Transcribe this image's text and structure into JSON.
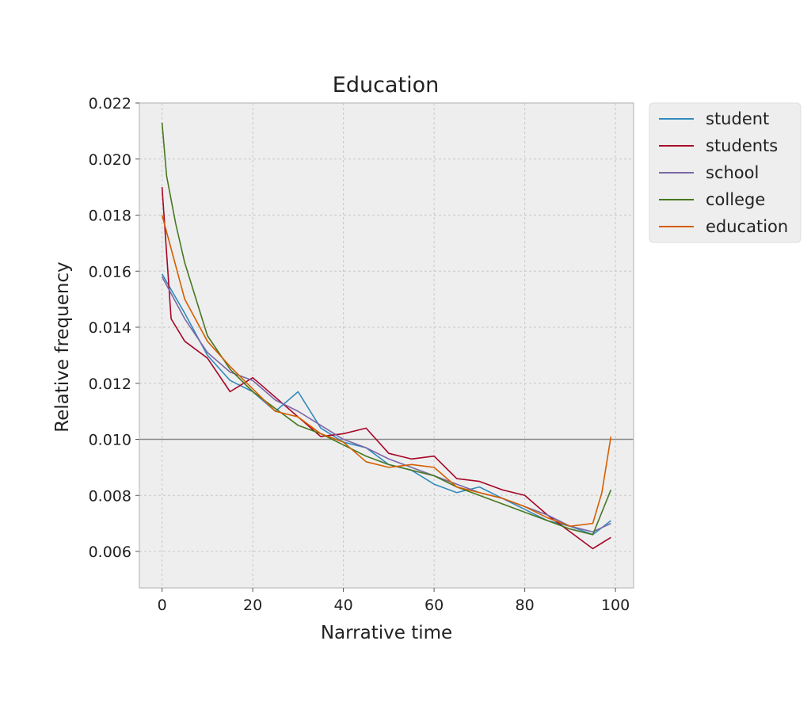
{
  "chart_data": {
    "type": "line",
    "title": "Education",
    "xlabel": "Narrative time",
    "ylabel": "Relative frequency",
    "xlim": [
      -5,
      104
    ],
    "ylim": [
      0.0047,
      0.022
    ],
    "x_ticks": [
      0,
      20,
      40,
      60,
      80,
      100
    ],
    "x_tick_labels": [
      "0",
      "20",
      "40",
      "60",
      "80",
      "100"
    ],
    "y_ticks": [
      0.006,
      0.008,
      0.01,
      0.012,
      0.014,
      0.016,
      0.018,
      0.02,
      0.022
    ],
    "y_tick_labels": [
      "0.006",
      "0.008",
      "0.010",
      "0.012",
      "0.014",
      "0.016",
      "0.018",
      "0.020",
      "0.022"
    ],
    "grid": true,
    "legend_position": "outside-right-top",
    "reference_line_y": 0.01,
    "reference_line_color": "#888888",
    "background_color": "#eeeeee",
    "series": [
      {
        "name": "student",
        "color": "#348abd",
        "x": [
          0,
          5,
          10,
          15,
          20,
          25,
          30,
          35,
          40,
          45,
          50,
          55,
          60,
          65,
          70,
          75,
          80,
          85,
          90,
          95,
          99
        ],
        "y": [
          0.0159,
          0.0145,
          0.013,
          0.0121,
          0.0117,
          0.011,
          0.0117,
          0.0104,
          0.0099,
          0.0097,
          0.0091,
          0.0089,
          0.0084,
          0.0081,
          0.0083,
          0.0079,
          0.0075,
          0.0071,
          0.0069,
          0.0066,
          0.0071
        ]
      },
      {
        "name": "students",
        "color": "#a60628",
        "x": [
          0,
          2,
          5,
          10,
          15,
          20,
          25,
          30,
          35,
          40,
          45,
          50,
          55,
          60,
          65,
          70,
          75,
          80,
          85,
          90,
          95,
          99
        ],
        "y": [
          0.019,
          0.0143,
          0.0135,
          0.0129,
          0.0117,
          0.0122,
          0.0115,
          0.0108,
          0.0101,
          0.0102,
          0.0104,
          0.0095,
          0.0093,
          0.0094,
          0.0086,
          0.0085,
          0.0082,
          0.008,
          0.0073,
          0.0067,
          0.0061,
          0.0065
        ]
      },
      {
        "name": "school",
        "color": "#7a68a6",
        "x": [
          0,
          5,
          10,
          15,
          20,
          25,
          30,
          35,
          40,
          45,
          50,
          55,
          60,
          65,
          70,
          75,
          80,
          85,
          90,
          95,
          99
        ],
        "y": [
          0.0158,
          0.0143,
          0.0131,
          0.0124,
          0.0121,
          0.0114,
          0.011,
          0.0105,
          0.01,
          0.0097,
          0.0093,
          0.009,
          0.0087,
          0.0084,
          0.0081,
          0.0079,
          0.0076,
          0.0073,
          0.0069,
          0.0067,
          0.007
        ]
      },
      {
        "name": "college",
        "color": "#467821",
        "x": [
          0,
          1,
          3,
          5,
          10,
          15,
          20,
          25,
          30,
          35,
          40,
          45,
          50,
          55,
          60,
          65,
          70,
          75,
          80,
          85,
          90,
          95,
          99
        ],
        "y": [
          0.0213,
          0.0194,
          0.0177,
          0.0163,
          0.0137,
          0.0125,
          0.0117,
          0.0111,
          0.0105,
          0.0102,
          0.0098,
          0.0094,
          0.0091,
          0.0089,
          0.0087,
          0.0083,
          0.008,
          0.0077,
          0.0074,
          0.0071,
          0.0068,
          0.0066,
          0.0082
        ]
      },
      {
        "name": "education",
        "color": "#d55e00",
        "x": [
          0,
          5,
          10,
          15,
          20,
          25,
          30,
          35,
          40,
          45,
          50,
          55,
          60,
          65,
          70,
          75,
          80,
          85,
          90,
          95,
          97,
          99
        ],
        "y": [
          0.018,
          0.015,
          0.0135,
          0.0126,
          0.0118,
          0.011,
          0.0108,
          0.0102,
          0.0099,
          0.0092,
          0.009,
          0.0091,
          0.009,
          0.0083,
          0.0081,
          0.0079,
          0.0076,
          0.0072,
          0.0069,
          0.007,
          0.0081,
          0.0101
        ]
      }
    ]
  }
}
